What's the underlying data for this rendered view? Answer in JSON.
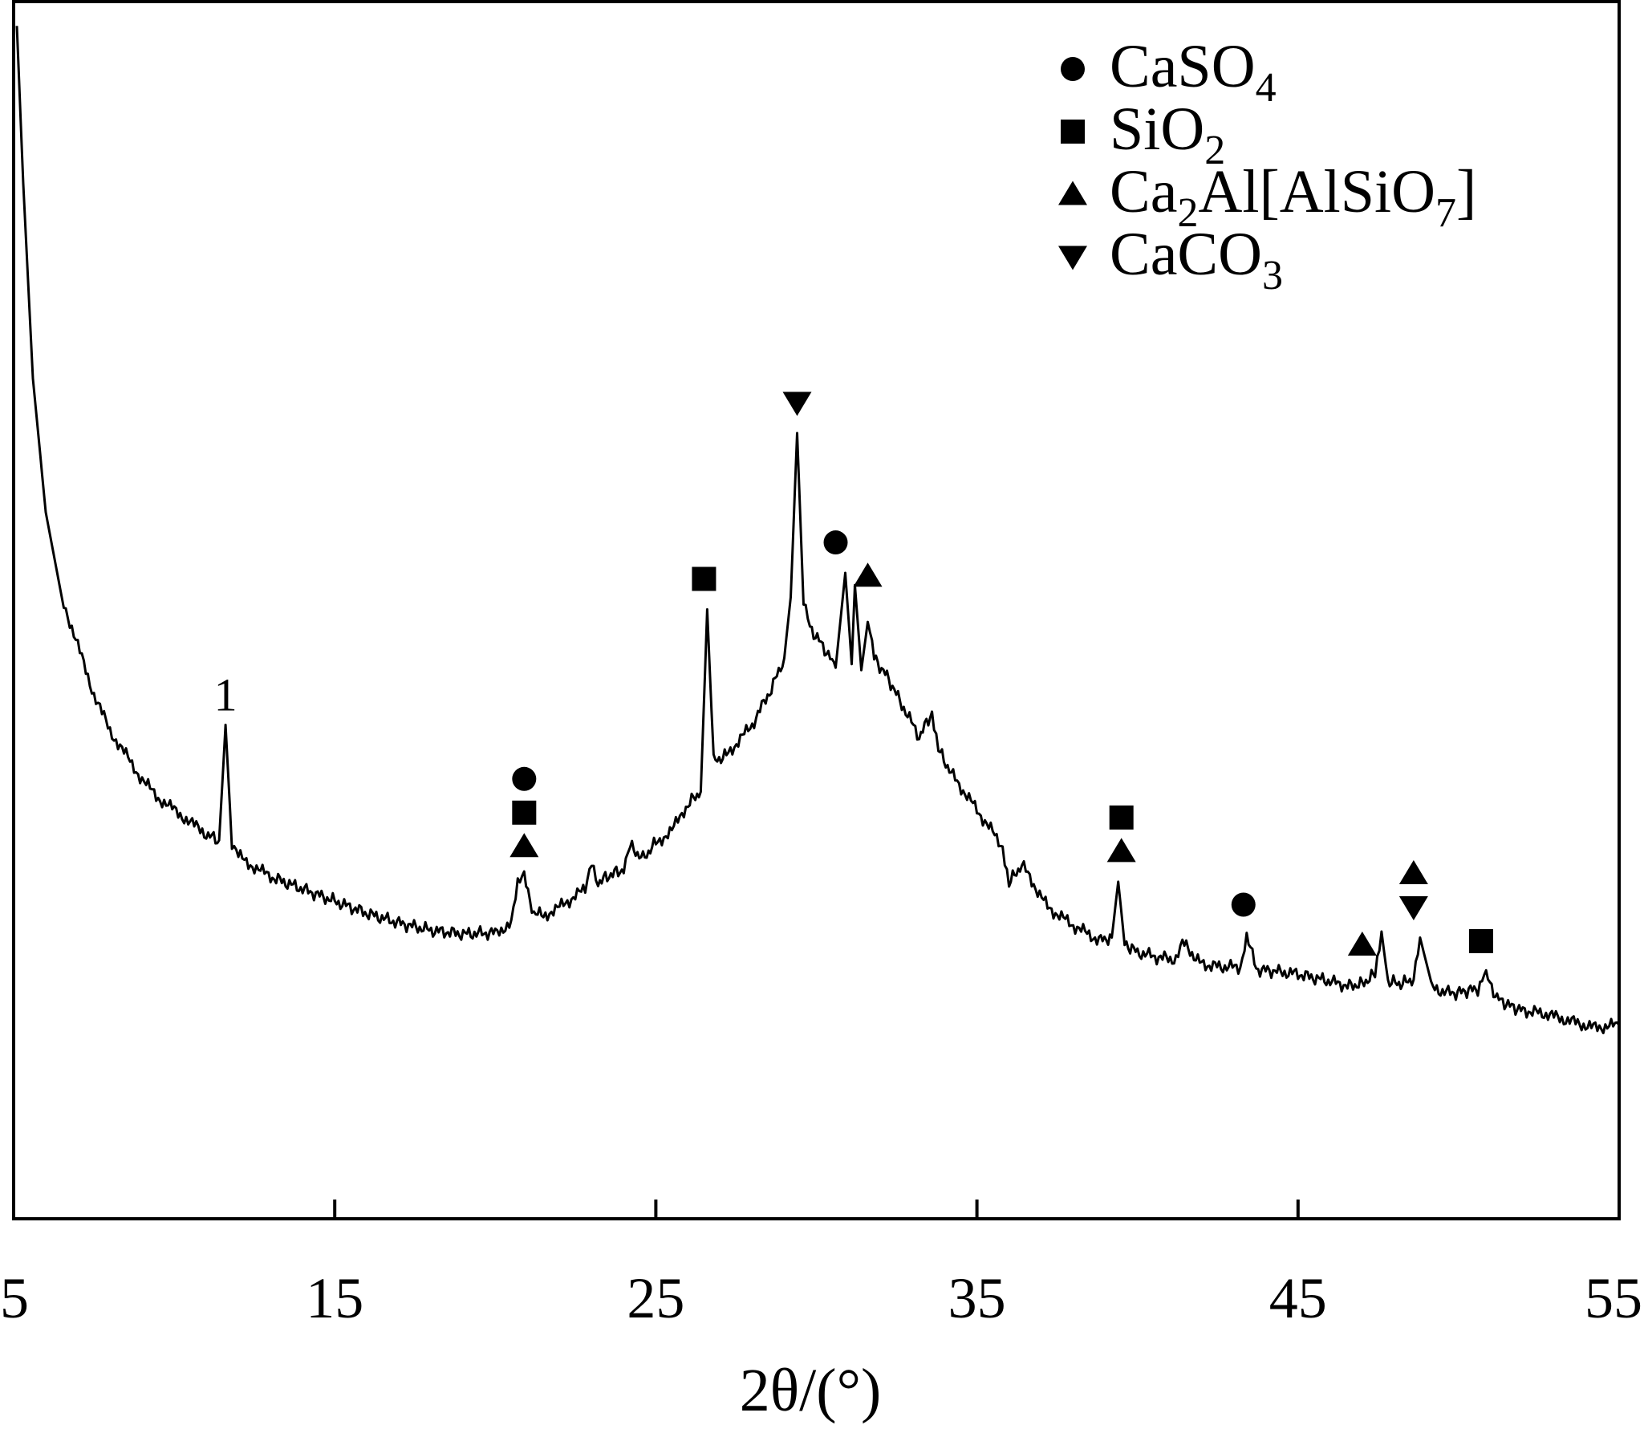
{
  "chart_data": {
    "type": "line",
    "title": "",
    "xlabel": "2θ/(°)",
    "ylabel": "",
    "xlim": [
      5,
      55
    ],
    "ylim": [
      0,
      100
    ],
    "x_ticks": [
      5,
      15,
      25,
      35,
      45,
      55
    ],
    "y_ticks_shown": false,
    "grid": false,
    "legend_position": "top-right",
    "line_color": "#000000",
    "legend": [
      {
        "marker": "circle",
        "main": "CaSO",
        "sub": "4",
        "tail": ""
      },
      {
        "marker": "square",
        "main": "SiO",
        "sub": "2",
        "tail": ""
      },
      {
        "marker": "triangle-up",
        "main": "Ca",
        "sub": "2",
        "tail": "Al[AlSiO",
        "sub2": "7",
        "tail2": "]"
      },
      {
        "marker": "triangle-down",
        "main": "CaCO",
        "sub": "3",
        "tail": ""
      }
    ],
    "series": [
      {
        "x": [
          5.1,
          5.3,
          5.6,
          6.0,
          6.5,
          7.0,
          7.5,
          8.0,
          8.5,
          9.0,
          9.5,
          10.0,
          10.5,
          11.0,
          11.4,
          11.6,
          11.8,
          12.0,
          12.5,
          13.0,
          14.0,
          15.0,
          16.0,
          17.0,
          18.0,
          19.0,
          20.0,
          20.5,
          20.7,
          20.9,
          21.2,
          21.5,
          22.0,
          22.8,
          23.0,
          23.2,
          23.6,
          24.0,
          24.2,
          24.6,
          25.0,
          25.5,
          26.0,
          26.4,
          26.6,
          26.8,
          27.2,
          28.0,
          28.6,
          29.0,
          29.2,
          29.4,
          29.6,
          29.8,
          30.2,
          30.6,
          30.9,
          31.1,
          31.2,
          31.4,
          31.6,
          31.8,
          32.2,
          32.6,
          33.2,
          33.6,
          33.8,
          34.2,
          35.0,
          35.8,
          36.0,
          36.4,
          37.2,
          38.0,
          38.8,
          39.2,
          39.4,
          39.6,
          40.0,
          40.6,
          41.2,
          41.4,
          42.0,
          42.6,
          43.2,
          43.4,
          43.7,
          44.4,
          45.0,
          46.0,
          46.6,
          47.0,
          47.4,
          47.6,
          47.8,
          48.2,
          48.6,
          48.8,
          49.2,
          49.8,
          50.2,
          50.6,
          50.8,
          51.2,
          51.6,
          52.0,
          52.6,
          53.4,
          54.2,
          55.0
        ],
        "y": [
          98,
          85,
          69,
          58,
          51,
          47,
          43,
          40,
          38,
          36,
          34.5,
          33.5,
          32.5,
          31.5,
          31.0,
          40.5,
          30.5,
          29.7,
          28.8,
          28.0,
          27.0,
          26.0,
          25.0,
          24.2,
          23.6,
          23.3,
          23.4,
          24.2,
          27.3,
          28.0,
          25.0,
          24.8,
          25.5,
          27.0,
          29.4,
          27.5,
          28.2,
          28.6,
          30.5,
          29.5,
          30.8,
          31.8,
          34.0,
          35.0,
          50.0,
          37.5,
          38.0,
          40.5,
          43.5,
          46.0,
          51.0,
          64.5,
          50.5,
          48.5,
          47.0,
          45.2,
          53.0,
          45.5,
          52.0,
          45.0,
          49.0,
          46.0,
          44.5,
          42.5,
          39.5,
          41.5,
          38.5,
          36.5,
          33.5,
          30.5,
          27.5,
          29.0,
          25.5,
          24.0,
          22.8,
          23.0,
          27.6,
          22.5,
          21.8,
          21.4,
          21.2,
          22.6,
          20.8,
          20.6,
          20.6,
          23.2,
          20.4,
          20.2,
          20.0,
          19.4,
          19.0,
          19.2,
          20.0,
          23.5,
          19.4,
          19.2,
          19.6,
          23.0,
          18.8,
          18.4,
          18.6,
          18.8,
          20.2,
          18.0,
          17.4,
          17.0,
          16.8,
          16.2,
          15.6,
          15.8
        ]
      }
    ],
    "annotations": [
      {
        "label": "1",
        "x": 11.6
      },
      {
        "markers": [
          "circle",
          "square",
          "triangle-up"
        ],
        "x": 20.9
      },
      {
        "markers": [
          "square"
        ],
        "x": 26.5
      },
      {
        "markers": [
          "triangle-down"
        ],
        "x": 29.4
      },
      {
        "markers": [
          "circle"
        ],
        "x": 30.6
      },
      {
        "markers": [
          "triangle-up"
        ],
        "x": 31.6
      },
      {
        "markers": [
          "square",
          "triangle-up"
        ],
        "x": 39.5
      },
      {
        "markers": [
          "circle"
        ],
        "x": 43.3
      },
      {
        "markers": [
          "triangle-up"
        ],
        "x": 47.0
      },
      {
        "markers": [
          "triangle-up",
          "triangle-down"
        ],
        "x": 48.6
      },
      {
        "markers": [
          "square"
        ],
        "x": 50.7
      }
    ]
  }
}
